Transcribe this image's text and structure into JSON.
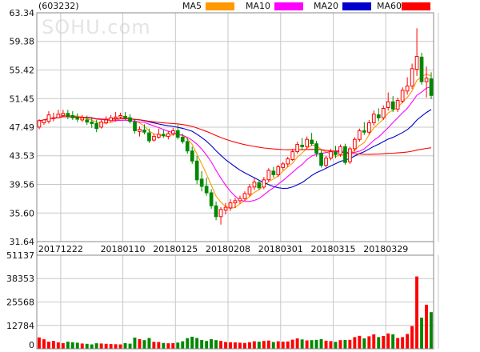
{
  "chart_data": {
    "type": "candlestick",
    "stock_code": "(603232)",
    "watermark": "SOHU.com",
    "legend": [
      {
        "name": "MA5",
        "color": "#ff9900"
      },
      {
        "name": "MA10",
        "color": "#ff00ff"
      },
      {
        "name": "MA20",
        "color": "#0000cc"
      },
      {
        "name": "MA60",
        "color": "#ff0000"
      }
    ],
    "price_ticks": [
      "63.34",
      "59.38",
      "55.42",
      "51.45",
      "47.49",
      "43.53",
      "39.56",
      "35.60",
      "31.64"
    ],
    "price_range": [
      31.64,
      63.34
    ],
    "volume_ticks": [
      "51137",
      "38353",
      "25568",
      "12784",
      "0"
    ],
    "volume_range": [
      0,
      51137
    ],
    "date_ticks": [
      {
        "label": "20171222",
        "index": 5
      },
      {
        "label": "20180110",
        "index": 18
      },
      {
        "label": "20180125",
        "index": 29
      },
      {
        "label": "20180208",
        "index": 40
      },
      {
        "label": "20180301",
        "index": 51
      },
      {
        "label": "20180315",
        "index": 62
      },
      {
        "label": "20180329",
        "index": 73
      },
      {
        "label": "",
        "index": 84
      }
    ],
    "up_color": "#ff0000",
    "down_color": "#008800",
    "candles": [
      [
        47.5,
        48.6,
        47.2,
        48.4
      ],
      [
        48.1,
        48.6,
        47.8,
        48.5
      ],
      [
        48.3,
        49.7,
        48.0,
        49.2
      ],
      [
        48.7,
        49.5,
        48.3,
        48.8
      ],
      [
        48.8,
        49.9,
        48.7,
        49.3
      ],
      [
        49.1,
        49.9,
        48.9,
        49.4
      ],
      [
        49.4,
        49.9,
        48.6,
        49.0
      ],
      [
        49.1,
        49.7,
        48.5,
        48.8
      ],
      [
        48.8,
        49.4,
        48.2,
        48.6
      ],
      [
        48.5,
        49.2,
        48.2,
        48.8
      ],
      [
        48.5,
        49.1,
        47.8,
        48.2
      ],
      [
        48.2,
        48.9,
        47.4,
        48.0
      ],
      [
        48.0,
        48.5,
        46.8,
        47.3
      ],
      [
        47.5,
        48.6,
        47.3,
        48.2
      ],
      [
        48.1,
        49.0,
        47.9,
        48.5
      ],
      [
        48.4,
        49.2,
        48.2,
        48.8
      ],
      [
        48.7,
        49.6,
        48.3,
        48.9
      ],
      [
        48.9,
        49.5,
        48.6,
        49.1
      ],
      [
        49.0,
        49.6,
        48.5,
        48.8
      ],
      [
        48.8,
        49.3,
        48.0,
        48.3
      ],
      [
        48.2,
        48.6,
        46.6,
        47.0
      ],
      [
        46.9,
        47.6,
        46.2,
        47.2
      ],
      [
        47.1,
        47.9,
        46.5,
        46.8
      ],
      [
        46.7,
        47.3,
        45.3,
        45.6
      ],
      [
        45.7,
        46.6,
        45.5,
        46.2
      ],
      [
        46.1,
        47.3,
        45.9,
        46.5
      ],
      [
        46.5,
        47.1,
        46.0,
        46.3
      ],
      [
        46.2,
        47.0,
        45.8,
        46.6
      ],
      [
        46.6,
        47.4,
        46.3,
        47.0
      ],
      [
        47.0,
        47.8,
        45.8,
        46.1
      ],
      [
        46.1,
        46.6,
        45.2,
        45.5
      ],
      [
        45.5,
        46.0,
        43.8,
        44.2
      ],
      [
        44.2,
        44.8,
        42.4,
        42.8
      ],
      [
        42.8,
        43.5,
        39.6,
        40.2
      ],
      [
        40.3,
        41.4,
        38.6,
        39.3
      ],
      [
        39.3,
        40.5,
        38.0,
        38.4
      ],
      [
        38.4,
        38.9,
        36.2,
        36.6
      ],
      [
        36.6,
        37.2,
        34.6,
        35.1
      ],
      [
        35.1,
        36.4,
        34.0,
        36.1
      ],
      [
        36.0,
        37.0,
        35.4,
        36.4
      ],
      [
        36.3,
        37.5,
        35.9,
        37.0
      ],
      [
        37.0,
        37.7,
        36.3,
        37.3
      ],
      [
        37.3,
        38.0,
        36.9,
        37.6
      ],
      [
        37.6,
        38.6,
        37.3,
        38.3
      ],
      [
        38.2,
        39.6,
        37.9,
        39.2
      ],
      [
        39.2,
        40.4,
        38.8,
        39.9
      ],
      [
        39.8,
        40.2,
        38.8,
        39.1
      ],
      [
        39.2,
        40.6,
        38.9,
        40.2
      ],
      [
        40.2,
        41.8,
        39.9,
        41.5
      ],
      [
        41.4,
        42.0,
        40.5,
        40.9
      ],
      [
        40.9,
        42.3,
        40.6,
        42.0
      ],
      [
        41.9,
        42.7,
        41.5,
        42.4
      ],
      [
        42.4,
        43.4,
        42.0,
        43.1
      ],
      [
        43.0,
        44.5,
        42.8,
        44.1
      ],
      [
        44.1,
        45.5,
        43.8,
        45.1
      ],
      [
        45.0,
        46.0,
        44.3,
        44.8
      ],
      [
        44.8,
        46.2,
        44.5,
        45.8
      ],
      [
        45.7,
        46.7,
        44.9,
        45.2
      ],
      [
        45.2,
        45.6,
        43.4,
        43.9
      ],
      [
        43.9,
        44.3,
        41.9,
        42.2
      ],
      [
        42.2,
        43.5,
        41.9,
        43.2
      ],
      [
        43.2,
        44.5,
        42.9,
        44.1
      ],
      [
        44.0,
        44.9,
        43.2,
        43.7
      ],
      [
        43.7,
        45.1,
        43.4,
        44.8
      ],
      [
        44.8,
        45.2,
        42.3,
        42.6
      ],
      [
        42.7,
        44.8,
        42.4,
        44.5
      ],
      [
        44.5,
        46.1,
        44.1,
        45.8
      ],
      [
        45.8,
        47.3,
        45.5,
        47.0
      ],
      [
        47.0,
        48.2,
        46.4,
        46.8
      ],
      [
        46.8,
        48.5,
        46.5,
        48.1
      ],
      [
        48.1,
        49.8,
        47.7,
        49.3
      ],
      [
        49.2,
        50.1,
        48.3,
        48.8
      ],
      [
        48.8,
        50.5,
        48.5,
        50.1
      ],
      [
        50.2,
        52.3,
        49.8,
        51.0
      ],
      [
        51.0,
        51.8,
        49.6,
        50.0
      ],
      [
        50.0,
        51.6,
        49.6,
        51.2
      ],
      [
        51.1,
        53.0,
        50.8,
        52.6
      ],
      [
        52.5,
        54.4,
        52.0,
        53.2
      ],
      [
        53.2,
        56.3,
        52.8,
        55.6
      ],
      [
        55.5,
        61.2,
        54.6,
        57.3
      ],
      [
        57.2,
        57.8,
        53.4,
        53.8
      ],
      [
        53.8,
        55.9,
        51.6,
        54.3
      ],
      [
        54.2,
        55.1,
        51.4,
        51.9
      ]
    ],
    "volumes": [
      6200,
      5200,
      3900,
      4300,
      3500,
      3100,
      3900,
      3600,
      3300,
      2900,
      2700,
      2400,
      3000,
      2900,
      2700,
      2600,
      2500,
      2400,
      3100,
      2800,
      6100,
      5300,
      4700,
      5900,
      3800,
      3700,
      3200,
      3000,
      3100,
      3400,
      4100,
      5800,
      6600,
      5900,
      4800,
      4300,
      5300,
      4700,
      4300,
      3700,
      3600,
      3500,
      3300,
      3200,
      3600,
      4100,
      3900,
      4300,
      4500,
      3700,
      4100,
      3900,
      4000,
      5000,
      5700,
      5100,
      4600,
      4700,
      4900,
      5300,
      4400,
      4200,
      3800,
      4700,
      4800,
      4900,
      6400,
      7100,
      5700,
      6800,
      7900,
      6400,
      7000,
      8400,
      7900,
      5900,
      6400,
      8100,
      12400,
      39500,
      17000,
      24100,
      20000
    ]
  }
}
